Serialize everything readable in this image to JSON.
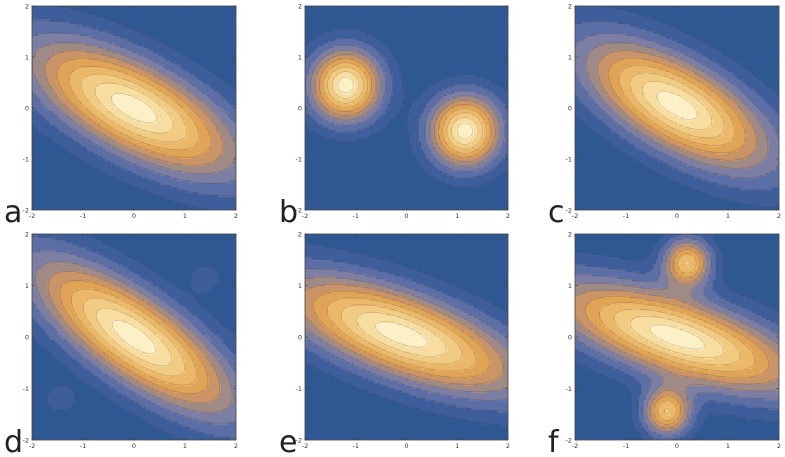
{
  "chart_data": [
    {
      "type": "contour",
      "panel_label": "a",
      "xlim": [
        -2,
        2
      ],
      "ylim": [
        -2,
        2
      ],
      "x_ticks": [
        -2,
        -1,
        0,
        1,
        2
      ],
      "y_ticks": [
        -2,
        -1,
        0,
        1,
        2
      ],
      "x_tick_labels": [
        "-2",
        "-1",
        "0",
        "1",
        "2"
      ],
      "y_tick_labels": [
        "-2",
        "-1",
        "0",
        "1",
        "2"
      ],
      "lobes": [
        {
          "x": 0,
          "y": 0,
          "sx": 1.55,
          "sy": 0.6,
          "angle_deg": -28,
          "weight": 1.0
        }
      ]
    },
    {
      "type": "contour",
      "panel_label": "b",
      "xlim": [
        -2,
        2
      ],
      "ylim": [
        -2,
        2
      ],
      "x_ticks": [
        -2,
        -1,
        0,
        1,
        2
      ],
      "y_ticks": [
        -2,
        -1,
        0,
        1,
        2
      ],
      "x_tick_labels": [
        "-2",
        "-1",
        "0",
        "1",
        "2"
      ],
      "y_tick_labels": [
        "-2",
        "-1",
        "0",
        "1",
        "2"
      ],
      "lobes": [
        {
          "x": -1.2,
          "y": 0.45,
          "sx": 0.48,
          "sy": 0.48,
          "angle_deg": 0,
          "weight": 1.0
        },
        {
          "x": 1.15,
          "y": -0.45,
          "sx": 0.48,
          "sy": 0.48,
          "angle_deg": 0,
          "weight": 1.0
        }
      ]
    },
    {
      "type": "contour",
      "panel_label": "c",
      "xlim": [
        -2,
        2
      ],
      "ylim": [
        -2,
        2
      ],
      "x_ticks": [
        -2,
        -1,
        0,
        1,
        2
      ],
      "y_ticks": [
        -2,
        -1,
        0,
        1,
        2
      ],
      "x_tick_labels": [
        "-2",
        "-1",
        "0",
        "1",
        "2"
      ],
      "y_tick_labels": [
        "-2",
        "-1",
        "0",
        "1",
        "2"
      ],
      "lobes": [
        {
          "x": 0,
          "y": 0.05,
          "sx": 1.4,
          "sy": 0.58,
          "angle_deg": -30,
          "weight": 1.0
        }
      ]
    },
    {
      "type": "contour",
      "panel_label": "d",
      "xlim": [
        -2,
        2
      ],
      "ylim": [
        -2,
        2
      ],
      "x_ticks": [
        -2,
        -1,
        0,
        1,
        2
      ],
      "y_ticks": [
        -2,
        -1,
        0,
        1,
        2
      ],
      "x_tick_labels": [
        "-2",
        "-1",
        "0",
        "1",
        "2"
      ],
      "y_tick_labels": [
        "-2",
        "-1",
        "0",
        "1",
        "2"
      ],
      "lobes": [
        {
          "x": 0,
          "y": 0,
          "sx": 1.6,
          "sy": 0.55,
          "angle_deg": -35,
          "weight": 1.0
        },
        {
          "x": 1.4,
          "y": 1.15,
          "sx": 0.22,
          "sy": 0.2,
          "angle_deg": 0,
          "weight": 0.13
        },
        {
          "x": -1.45,
          "y": -1.2,
          "sx": 0.22,
          "sy": 0.2,
          "angle_deg": 0,
          "weight": 0.13
        }
      ]
    },
    {
      "type": "contour",
      "panel_label": "e",
      "xlim": [
        -2,
        2
      ],
      "ylim": [
        -2,
        2
      ],
      "x_ticks": [
        -2,
        -1,
        0,
        1,
        2
      ],
      "y_ticks": [
        -2,
        -1,
        0,
        1,
        2
      ],
      "x_tick_labels": [
        "-2",
        "-1",
        "0",
        "1",
        "2"
      ],
      "y_tick_labels": [
        "-2",
        "-1",
        "0",
        "1",
        "2"
      ],
      "lobes": [
        {
          "x": -0.1,
          "y": 0.05,
          "sx": 1.7,
          "sy": 0.55,
          "angle_deg": -20,
          "weight": 1.0
        }
      ]
    },
    {
      "type": "contour",
      "panel_label": "f",
      "xlim": [
        -2,
        2
      ],
      "ylim": [
        -2,
        2
      ],
      "x_ticks": [
        -2,
        -1,
        0,
        1,
        2
      ],
      "y_ticks": [
        -2,
        -1,
        0,
        1,
        2
      ],
      "x_tick_labels": [
        "-2",
        "-1",
        "0",
        "1",
        "2"
      ],
      "y_tick_labels": [
        "-2",
        "-1",
        "0",
        "1",
        "2"
      ],
      "lobes": [
        {
          "x": 0,
          "y": 0,
          "sx": 1.75,
          "sy": 0.52,
          "angle_deg": -18,
          "weight": 1.0
        },
        {
          "x": 0.2,
          "y": 1.45,
          "sx": 0.32,
          "sy": 0.32,
          "angle_deg": 0,
          "weight": 0.75
        },
        {
          "x": -0.2,
          "y": -1.45,
          "sx": 0.32,
          "sy": 0.32,
          "angle_deg": 0,
          "weight": 0.75
        }
      ]
    }
  ],
  "colors": {
    "background": "#2f5893",
    "levels": [
      "#3d5e9a",
      "#5b6fa6",
      "#7d7ea3",
      "#a08a86",
      "#c99467",
      "#e0a457",
      "#ebb869",
      "#f2cb82",
      "#f8dda1",
      "#fdf0c6"
    ]
  }
}
